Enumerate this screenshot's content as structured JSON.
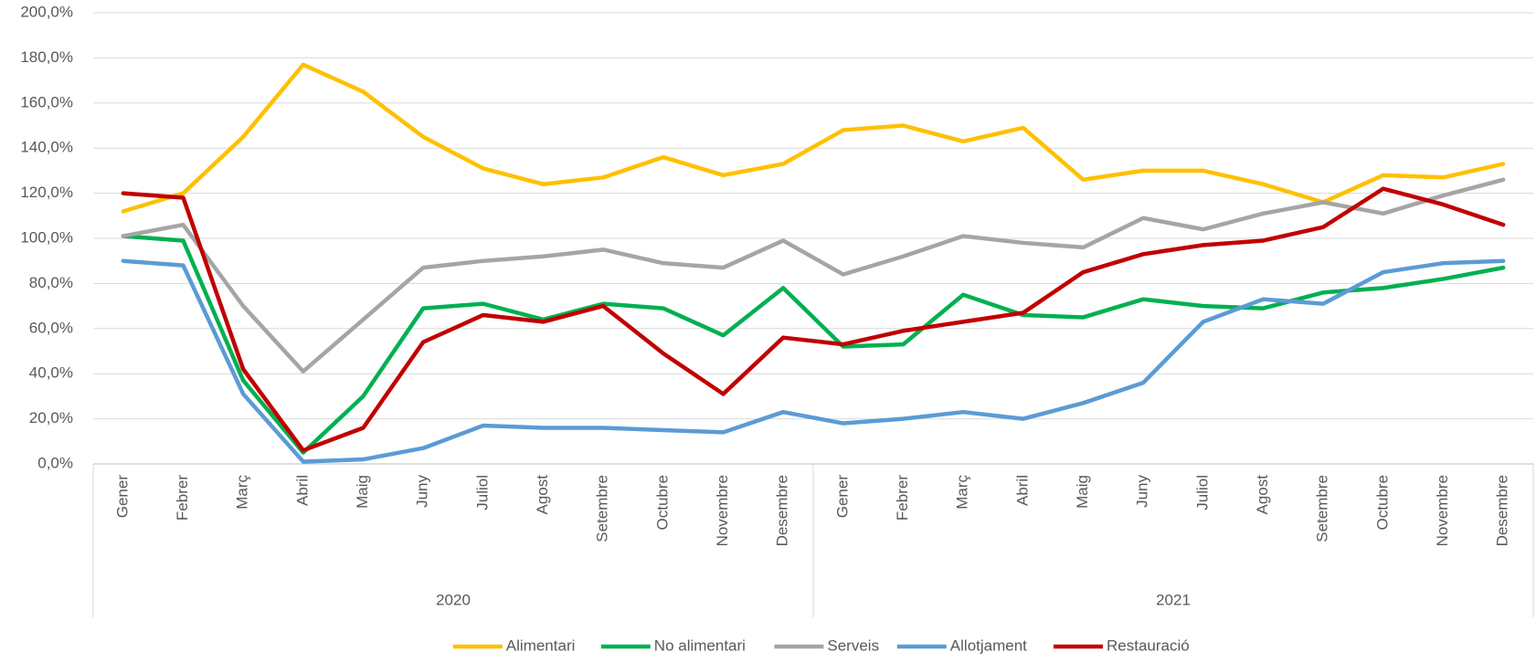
{
  "chart_data": {
    "type": "line",
    "categories": [
      "Gener",
      "Febrer",
      "Març",
      "Abril",
      "Maig",
      "Juny",
      "Juliol",
      "Agost",
      "Setembre",
      "Octubre",
      "Novembre",
      "Desembre",
      "Gener",
      "Febrer",
      "Març",
      "Abril",
      "Maig",
      "Juny",
      "Juliol",
      "Agost",
      "Setembre",
      "Octubre",
      "Novembre",
      "Desembre"
    ],
    "category_groups": [
      "2020",
      "2021"
    ],
    "series": [
      {
        "name": "Alimentari",
        "color": "#FFC000",
        "values": [
          112,
          120,
          145,
          177,
          165,
          145,
          131,
          124,
          127,
          136,
          128,
          133,
          148,
          150,
          143,
          149,
          126,
          130,
          130,
          124,
          116,
          128,
          127,
          133
        ]
      },
      {
        "name": "No alimentari",
        "color": "#00B050",
        "values": [
          101,
          99,
          37,
          5,
          30,
          69,
          71,
          64,
          71,
          69,
          57,
          78,
          52,
          53,
          75,
          66,
          65,
          73,
          70,
          69,
          76,
          78,
          82,
          87
        ]
      },
      {
        "name": "Serveis",
        "color": "#A5A5A5",
        "values": [
          101,
          106,
          70,
          41,
          64,
          87,
          90,
          92,
          95,
          89,
          87,
          99,
          84,
          92,
          101,
          98,
          96,
          109,
          104,
          111,
          116,
          111,
          119,
          126
        ]
      },
      {
        "name": "Allotjament",
        "color": "#5B9BD5",
        "values": [
          90,
          88,
          31,
          1,
          2,
          7,
          17,
          16,
          16,
          15,
          14,
          23,
          18,
          20,
          23,
          20,
          27,
          36,
          63,
          73,
          71,
          85,
          89,
          90
        ]
      },
      {
        "name": "Restauració",
        "color": "#C00000",
        "values": [
          120,
          118,
          42,
          6,
          16,
          54,
          66,
          63,
          70,
          49,
          31,
          56,
          53,
          59,
          63,
          67,
          85,
          93,
          97,
          99,
          105,
          122,
          115,
          106
        ]
      }
    ],
    "ylim": [
      0,
      200
    ],
    "yticks": [
      {
        "value": 0,
        "label": "0,0%"
      },
      {
        "value": 20,
        "label": "20,0%"
      },
      {
        "value": 40,
        "label": "40,0%"
      },
      {
        "value": 60,
        "label": "60,0%"
      },
      {
        "value": 80,
        "label": "80,0%"
      },
      {
        "value": 100,
        "label": "100,0%"
      },
      {
        "value": 120,
        "label": "120,0%"
      },
      {
        "value": 140,
        "label": "140,0%"
      },
      {
        "value": 160,
        "label": "160,0%"
      },
      {
        "value": 180,
        "label": "180,0%"
      },
      {
        "value": 200,
        "label": "200,0%"
      }
    ],
    "grid": true,
    "legend": "bottom"
  }
}
